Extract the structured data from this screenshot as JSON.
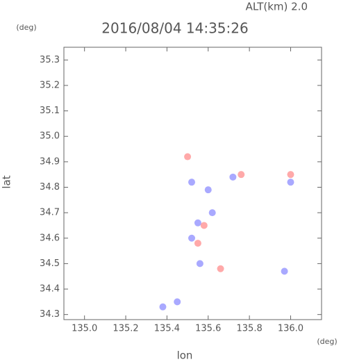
{
  "chart_data": {
    "type": "scatter",
    "title": "2016/08/04 14:35:26",
    "subtitle": "ALT(km)  2.0",
    "x_unit": "(deg)",
    "y_unit": "(deg)",
    "x_label": "lon",
    "y_label": "lat",
    "xlim": [
      134.9,
      136.15
    ],
    "ylim": [
      34.28,
      35.35
    ],
    "xticks": [
      {
        "value": 135.0,
        "label": "135.0"
      },
      135.2,
      135.4,
      135.6,
      135.8,
      {
        "value": 136.0,
        "label": "136.0"
      }
    ],
    "yticks": [
      35.3,
      35.2,
      35.1,
      {
        "value": 35.0,
        "label": "35.0"
      },
      34.9,
      34.8,
      34.7,
      34.6,
      34.5,
      34.4,
      34.3
    ],
    "series": [
      {
        "color": "#7070ff",
        "x": [
          135.6,
          135.72,
          136.0,
          135.55,
          135.52,
          135.56,
          135.97,
          135.45,
          135.38,
          135.52,
          135.62
        ],
        "values": [
          34.79,
          34.84,
          34.82,
          34.66,
          34.6,
          34.5,
          34.47,
          34.35,
          34.33,
          34.82,
          34.7
        ]
      },
      {
        "color": "#ff7070",
        "x": [
          135.5,
          135.58,
          135.66,
          135.76,
          136.0,
          135.55
        ],
        "values": [
          34.92,
          34.65,
          34.48,
          34.85,
          34.85,
          34.58
        ]
      }
    ]
  }
}
